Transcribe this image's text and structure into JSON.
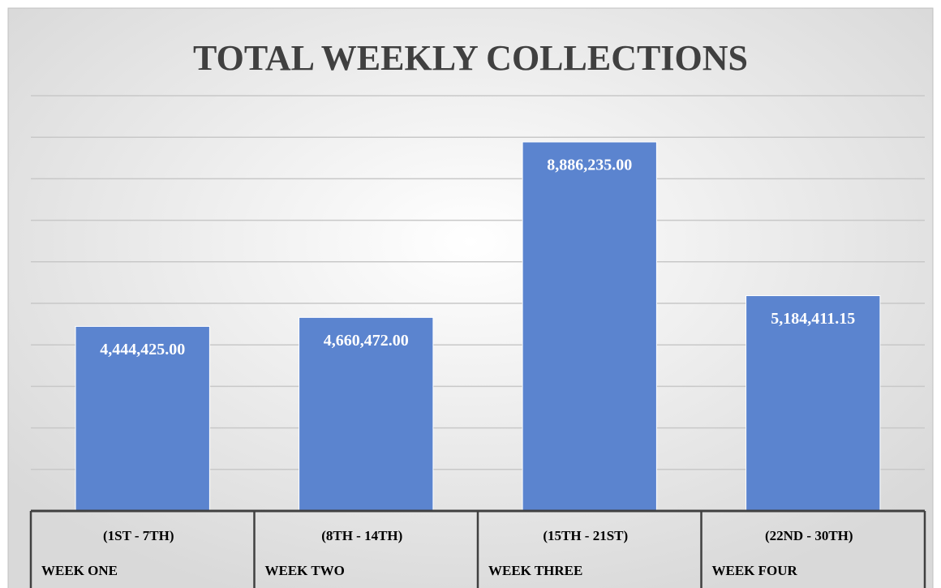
{
  "chart_data": {
    "type": "bar",
    "title": "TOTAL WEEKLY COLLECTIONS",
    "categories": [
      [
        "(1ST - 7TH)",
        "WEEK ONE"
      ],
      [
        "(8TH - 14TH)",
        "WEEK TWO"
      ],
      [
        "(15TH - 21ST)",
        "WEEK THREE"
      ],
      [
        "(22ND - 30TH)",
        "WEEK FOUR"
      ]
    ],
    "values": [
      4444425,
      4660472,
      8886235,
      5184411.15
    ],
    "value_labels": [
      "4,444,425.00",
      "4,660,472.00",
      "8,886,235.00",
      "5,184,411.15"
    ],
    "color": "#5b84cf",
    "ylim": [
      0,
      10000000
    ],
    "yticks": [
      0,
      1000000,
      2000000,
      3000000,
      4000000,
      5000000,
      6000000,
      7000000,
      8000000,
      9000000,
      10000000
    ],
    "grid": true
  }
}
